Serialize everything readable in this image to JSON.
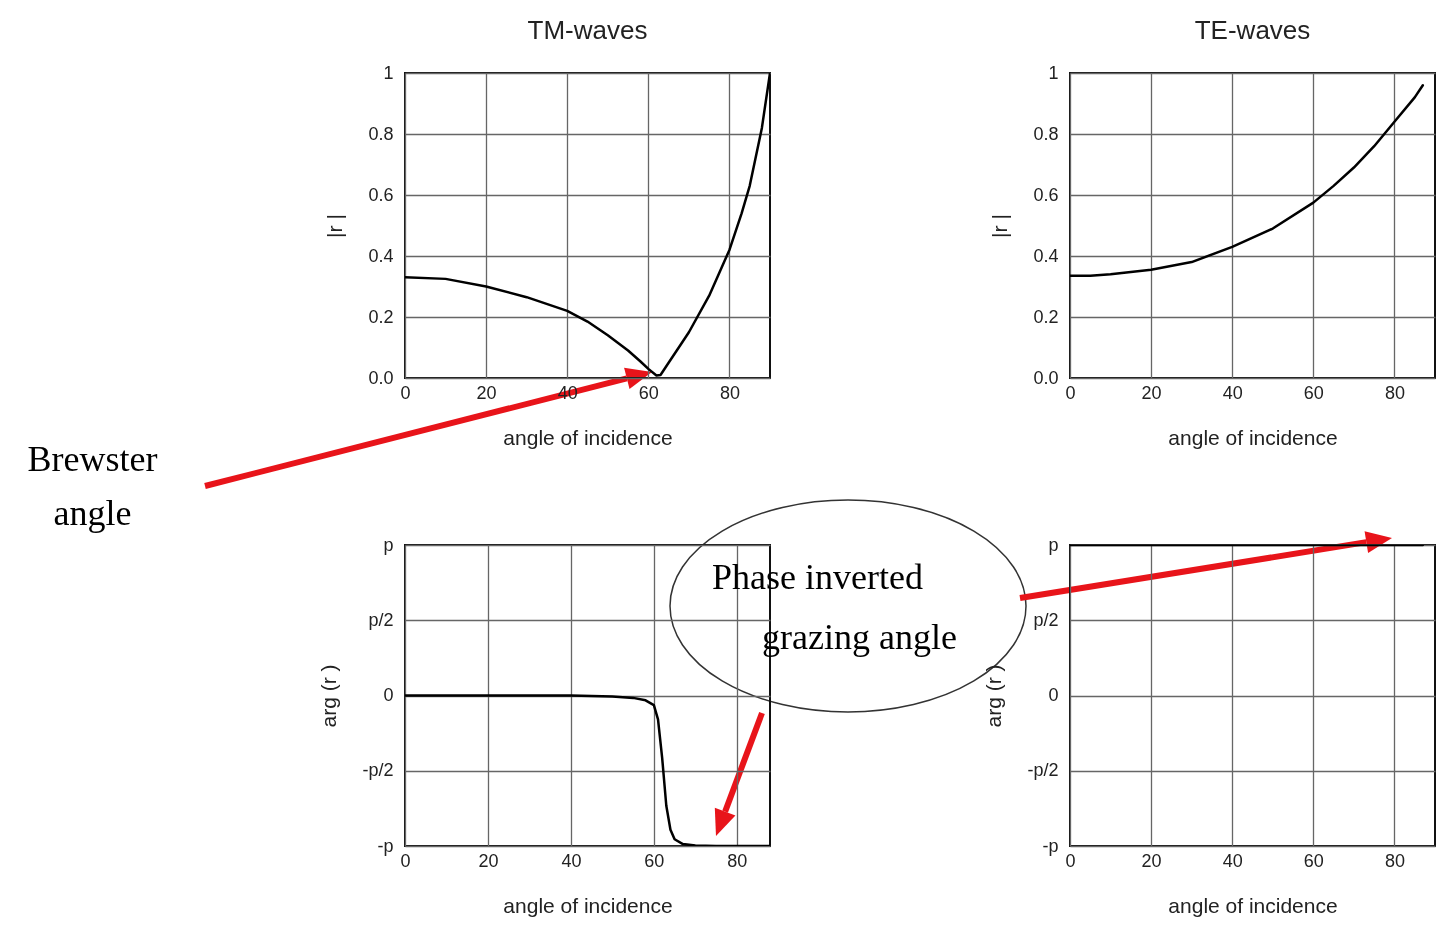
{
  "chart_data": [
    {
      "type": "line",
      "title": "TM-waves",
      "xlabel": "angle of incidence",
      "ylabel": "|r |",
      "color": "#000000",
      "grid": true,
      "x": [
        0,
        10,
        20,
        30,
        40,
        45,
        50,
        55,
        58,
        60,
        62,
        63,
        65,
        68,
        70,
        75,
        80,
        83,
        85,
        88,
        90
      ],
      "values": [
        0.33,
        0.325,
        0.3,
        0.265,
        0.22,
        0.185,
        0.14,
        0.09,
        0.055,
        0.03,
        0.008,
        0.01,
        0.05,
        0.11,
        0.15,
        0.27,
        0.42,
        0.54,
        0.63,
        0.82,
        1.0
      ],
      "xlim": [
        0,
        90
      ],
      "ylim": [
        0,
        1
      ],
      "xticks": [
        0,
        20,
        40,
        60,
        80
      ],
      "yticks": [
        {
          "value": 0,
          "label": "0.0"
        },
        0.2,
        0.4,
        0.6,
        0.8,
        1
      ],
      "annotations": [
        "Brewster angle"
      ]
    },
    {
      "type": "line",
      "title": "TE-waves",
      "xlabel": "angle of incidence",
      "ylabel": "|r |",
      "color": "#000000",
      "grid": true,
      "x": [
        0,
        5,
        10,
        20,
        30,
        40,
        50,
        60,
        65,
        70,
        75,
        80,
        85,
        87
      ],
      "values": [
        0.335,
        0.335,
        0.34,
        0.355,
        0.38,
        0.43,
        0.49,
        0.575,
        0.63,
        0.69,
        0.76,
        0.84,
        0.92,
        0.96
      ],
      "xlim": [
        0,
        90
      ],
      "ylim": [
        0,
        1
      ],
      "xticks": [
        0,
        20,
        40,
        60,
        80
      ],
      "yticks": [
        {
          "value": 0,
          "label": "0.0"
        },
        0.2,
        0.4,
        0.6,
        0.8,
        1
      ]
    },
    {
      "type": "line",
      "xlabel": "angle of incidence",
      "ylabel": "arg (r )",
      "color": "#000000",
      "grid": true,
      "x": [
        0,
        20,
        40,
        45,
        50,
        55,
        58,
        60,
        61,
        62,
        63,
        64,
        65,
        67,
        70,
        75,
        80,
        88
      ],
      "values": [
        0,
        0,
        0,
        -0.01,
        -0.02,
        -0.05,
        -0.1,
        -0.2,
        -0.5,
        -1.3,
        -2.3,
        -2.8,
        -3.0,
        -3.1,
        -3.13,
        -3.14,
        -3.14,
        -3.14
      ],
      "xlim": [
        0,
        88
      ],
      "ylim": [
        -3.14,
        3.14
      ],
      "xticks": [
        0,
        20,
        40,
        60,
        80
      ],
      "yticks": [
        {
          "value": -3.14,
          "label": "-p"
        },
        {
          "value": -1.57,
          "label": "-p/2"
        },
        0,
        {
          "value": 1.57,
          "label": "p/2"
        },
        {
          "value": 3.14,
          "label": "p"
        }
      ],
      "annotations": [
        "Phase inverted",
        "grazing angle"
      ]
    },
    {
      "type": "line",
      "xlabel": "angle of incidence",
      "ylabel": "arg (r )",
      "color": "#000000",
      "grid": true,
      "x": [
        0,
        20,
        40,
        60,
        80,
        87
      ],
      "values": [
        3.14,
        3.14,
        3.14,
        3.14,
        3.14,
        3.14
      ],
      "xlim": [
        0,
        90
      ],
      "ylim": [
        -3.14,
        3.14
      ],
      "xticks": [
        0,
        20,
        40,
        60,
        80
      ],
      "yticks": [
        {
          "value": -3.14,
          "label": "-p"
        },
        {
          "value": -1.57,
          "label": "-p/2"
        },
        0,
        {
          "value": 1.57,
          "label": "p/2"
        },
        {
          "value": 3.14,
          "label": "p"
        }
      ]
    }
  ]
}
